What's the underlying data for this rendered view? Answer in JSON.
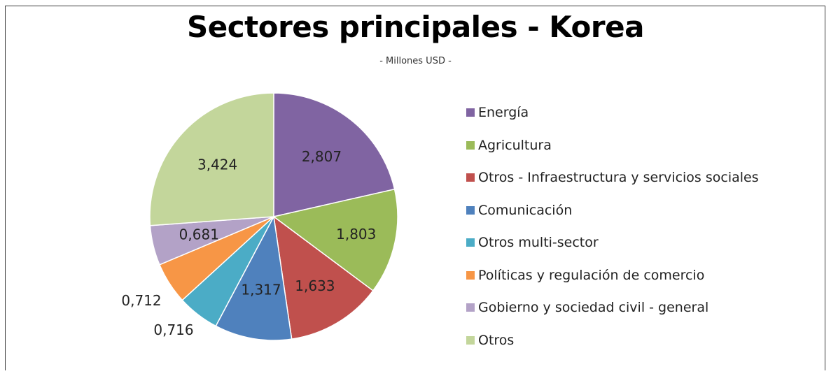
{
  "chart_data": {
    "type": "pie",
    "title": "Sectores principales - Korea",
    "subtitle": "- Millones USD -",
    "legend_position": "right",
    "slices": [
      {
        "name": "Energía",
        "value": 2.807,
        "label": "2,807",
        "color": "#8064a2"
      },
      {
        "name": "Agricultura",
        "value": 1.803,
        "label": "1,803",
        "color": "#9bbb59"
      },
      {
        "name": "Otros - Infraestructura y servicios sociales",
        "value": 1.633,
        "label": "1,633",
        "color": "#c0504d"
      },
      {
        "name": "Comunicación",
        "value": 1.317,
        "label": "1,317",
        "color": "#4f81bd"
      },
      {
        "name": "Otros multi-sector",
        "value": 0.716,
        "label": "0,716",
        "color": "#4bacc6"
      },
      {
        "name": "Políticas y regulación de comercio",
        "value": 0.712,
        "label": "0,712",
        "color": "#f79646"
      },
      {
        "name": "Gobierno y sociedad civil - general",
        "value": 0.681,
        "label": "0,681",
        "color": "#b3a2c7"
      },
      {
        "name": "Otros",
        "value": 3.424,
        "label": "3,424",
        "color": "#c3d69b"
      }
    ]
  }
}
